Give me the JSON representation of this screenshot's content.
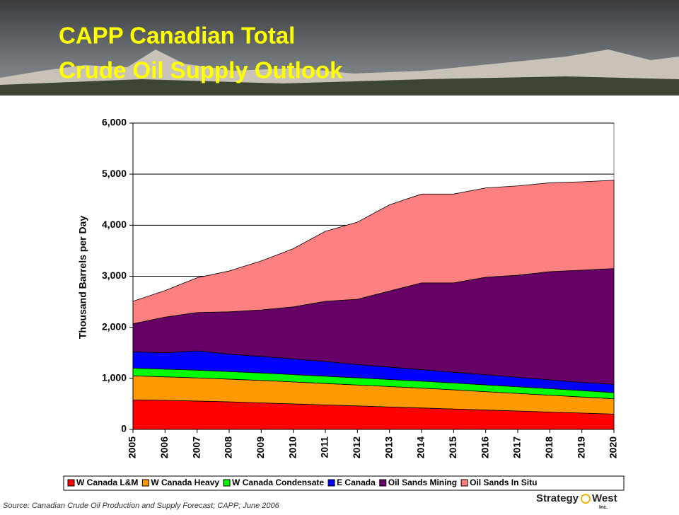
{
  "title_lines": [
    "CAPP Canadian Total",
    "Crude Oil Supply Outlook"
  ],
  "source": "Source: Canadian Crude Oil Production and Supply Forecast; CAPP; June 2006",
  "logo": {
    "left": "Strategy",
    "right": "West",
    "suffix": "Inc."
  },
  "chart_data": {
    "type": "stacked-area",
    "y_label": "Thousand Barrels per Day",
    "x": [
      2005,
      2006,
      2007,
      2008,
      2009,
      2010,
      2011,
      2012,
      2013,
      2014,
      2015,
      2016,
      2017,
      2018,
      2019,
      2020
    ],
    "xlim": [
      2005,
      2020
    ],
    "ylim": [
      0,
      6000
    ],
    "yticks": [
      0,
      {
        "value": 1000,
        "label": "1,000"
      },
      {
        "value": 2000,
        "label": "2,000"
      },
      {
        "value": 3000,
        "label": "3,000"
      },
      {
        "value": 4000,
        "label": "4,000"
      },
      {
        "value": 5000,
        "label": "5,000"
      },
      {
        "value": 6000,
        "label": "6,000"
      }
    ],
    "grid": true,
    "legend": "bottom",
    "series": [
      {
        "name": "W Canada L&M",
        "color": "#ff0000",
        "values": [
          580,
          570,
          555,
          540,
          520,
          500,
          480,
          460,
          440,
          420,
          400,
          380,
          360,
          340,
          320,
          300
        ]
      },
      {
        "name": "W Canada Heavy",
        "color": "#ff9900",
        "values": [
          470,
          460,
          455,
          445,
          440,
          430,
          420,
          410,
          400,
          390,
          375,
          360,
          345,
          330,
          315,
          300
        ]
      },
      {
        "name": "W Canada Condensate",
        "color": "#00ff00",
        "values": [
          150,
          150,
          150,
          148,
          146,
          144,
          142,
          140,
          138,
          136,
          134,
          132,
          130,
          128,
          125,
          120
        ]
      },
      {
        "name": "E Canada",
        "color": "#0000ff",
        "values": [
          320,
          320,
          380,
          340,
          324,
          306,
          288,
          260,
          242,
          224,
          211,
          198,
          185,
          172,
          160,
          160
        ]
      },
      {
        "name": "Oil Sands Mining",
        "color": "#660066",
        "values": [
          550,
          700,
          750,
          830,
          910,
          1020,
          1180,
          1280,
          1490,
          1700,
          1750,
          1910,
          2000,
          2120,
          2200,
          2270
        ]
      },
      {
        "name": "Oil Sands In Situ",
        "color": "#ff8080",
        "values": [
          440,
          520,
          680,
          800,
          960,
          1140,
          1370,
          1510,
          1690,
          1740,
          1740,
          1750,
          1750,
          1740,
          1730,
          1730
        ]
      }
    ]
  }
}
